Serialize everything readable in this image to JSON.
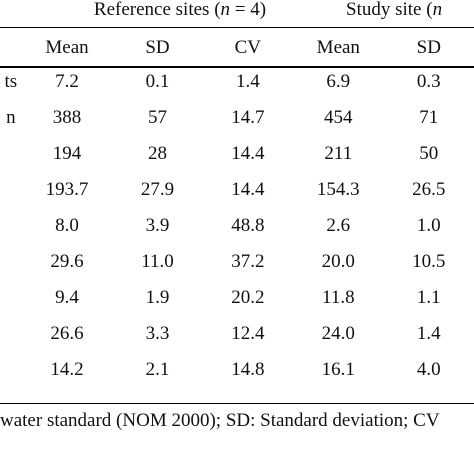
{
  "headers": {
    "group_reference": "Reference sites (",
    "group_reference_n": "n",
    "group_reference_rest": " = 4)",
    "group_study": "Study site (",
    "group_study_n": "n",
    "columns": [
      "Mean",
      "SD",
      "CV",
      "Mean",
      "SD"
    ]
  },
  "rows": [
    {
      "label": "ts",
      "values": [
        "7.2",
        "0.1",
        "1.4",
        "6.9",
        "0.3"
      ]
    },
    {
      "label": "n",
      "values": [
        "388",
        "57",
        "14.7",
        "454",
        "71"
      ]
    },
    {
      "label": "",
      "values": [
        "194",
        "28",
        "14.4",
        "211",
        "50"
      ]
    },
    {
      "label": "",
      "values": [
        "193.7",
        "27.9",
        "14.4",
        "154.3",
        "26.5"
      ]
    },
    {
      "label": "",
      "values": [
        "8.0",
        "3.9",
        "48.8",
        "2.6",
        "1.0"
      ]
    },
    {
      "label": "",
      "values": [
        "29.6",
        "11.0",
        "37.2",
        "20.0",
        "10.5"
      ]
    },
    {
      "label": "",
      "values": [
        "9.4",
        "1.9",
        "20.2",
        "11.8",
        "1.1"
      ]
    },
    {
      "label": "",
      "values": [
        "26.6",
        "3.3",
        "12.4",
        "24.0",
        "1.4"
      ]
    },
    {
      "label": "",
      "values": [
        "14.2",
        "2.1",
        "14.8",
        "16.1",
        "4.0"
      ]
    }
  ],
  "footnote": "water standard (NOM 2000); SD: Standard deviation; CV"
}
